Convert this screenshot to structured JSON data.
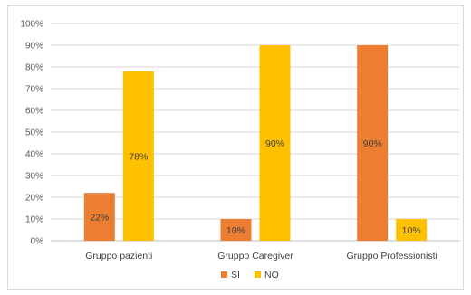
{
  "chart_data": {
    "type": "bar",
    "categories": [
      "Gruppo pazienti",
      "Gruppo Caregiver",
      "Gruppo Professionisti"
    ],
    "series": [
      {
        "name": "SI",
        "values": [
          22,
          10,
          90
        ],
        "color": "#ED7D31",
        "labels": [
          "22%",
          "10%",
          "90%"
        ]
      },
      {
        "name": "NO",
        "values": [
          78,
          90,
          10
        ],
        "color": "#FFC000",
        "labels": [
          "78%",
          "90%",
          "10%"
        ]
      }
    ],
    "yticks": [
      "0%",
      "10%",
      "20%",
      "30%",
      "40%",
      "50%",
      "60%",
      "70%",
      "80%",
      "90%",
      "100%"
    ],
    "ylim": [
      0,
      100
    ],
    "grid": true,
    "legend": "bottom",
    "gridColor": "#d9d9d9",
    "axisColor": "#bfbfbf"
  }
}
